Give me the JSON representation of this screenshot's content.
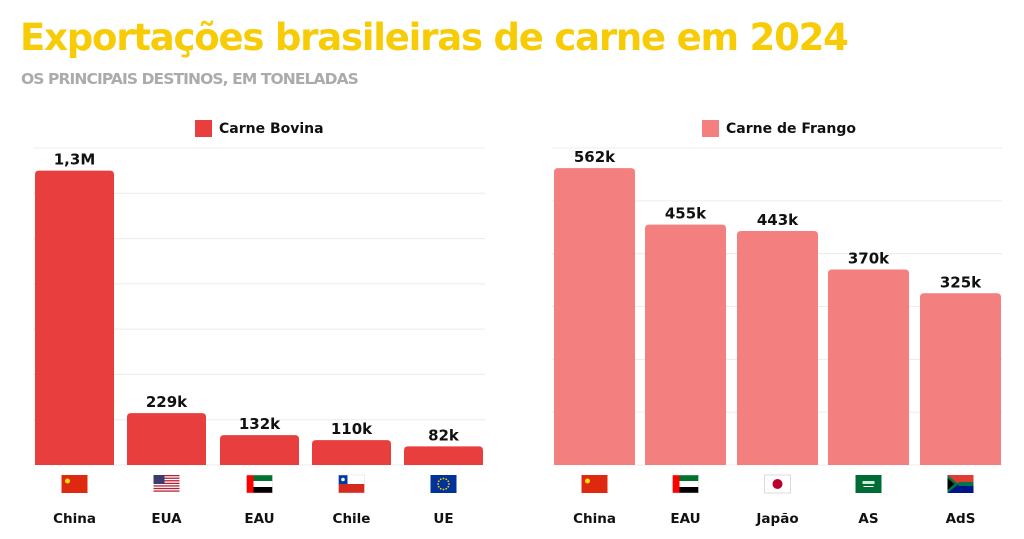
{
  "title": "Exportações brasileiras de carne em 2024",
  "subtitle": "OS PRINCIPAIS DESTINOS, EM TONELADAS",
  "chart_data": [
    {
      "type": "bar",
      "legend": "Carne Bovina",
      "color": "#E83E3E",
      "categories": [
        "China",
        "EUA",
        "EAU",
        "Chile",
        "UE"
      ],
      "flags": [
        "flag-china-icon",
        "flag-usa-icon",
        "flag-uae-icon",
        "flag-chile-icon",
        "flag-eu-icon"
      ],
      "values": [
        1300000,
        229000,
        132000,
        110000,
        82000
      ],
      "data_labels": [
        "1,3M",
        "229k",
        "132k",
        "110k",
        "82k"
      ],
      "ylim": [
        0,
        1400000
      ],
      "grid": true
    },
    {
      "type": "bar",
      "legend": "Carne de Frango",
      "color": "#F47F7F",
      "categories": [
        "China",
        "EAU",
        "Japão",
        "AS",
        "AdS"
      ],
      "flags": [
        "flag-china-icon",
        "flag-uae-icon",
        "flag-japan-icon",
        "flag-saudi-arabia-icon",
        "flag-south-africa-icon"
      ],
      "values": [
        562000,
        455000,
        443000,
        370000,
        325000
      ],
      "data_labels": [
        "562k",
        "455k",
        "443k",
        "370k",
        "325k"
      ],
      "ylim": [
        0,
        600000
      ],
      "grid": true
    }
  ]
}
